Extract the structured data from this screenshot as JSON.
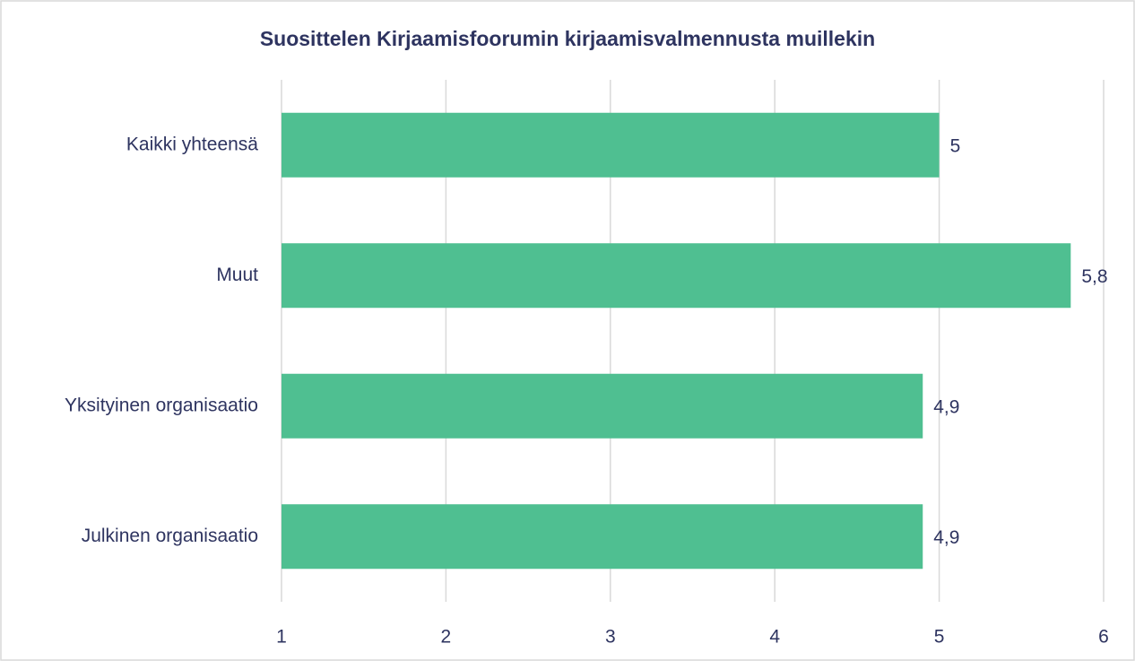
{
  "chart_data": {
    "type": "bar",
    "orientation": "horizontal",
    "title": "Suosittelen Kirjaamisfoorumin kirjaamisvalmennusta muillekin",
    "categories": [
      "Kaikki yhteensä",
      "Muut",
      "Yksityinen organisaatio",
      "Julkinen organisaatio"
    ],
    "values": [
      5,
      5.8,
      4.9,
      4.9
    ],
    "value_labels": [
      "5",
      "5,8",
      "4,9",
      "4,9"
    ],
    "color": "#4fbf91",
    "xlim": [
      1,
      6
    ],
    "xticks": [
      1,
      2,
      3,
      4,
      5,
      6
    ],
    "grid": true
  }
}
